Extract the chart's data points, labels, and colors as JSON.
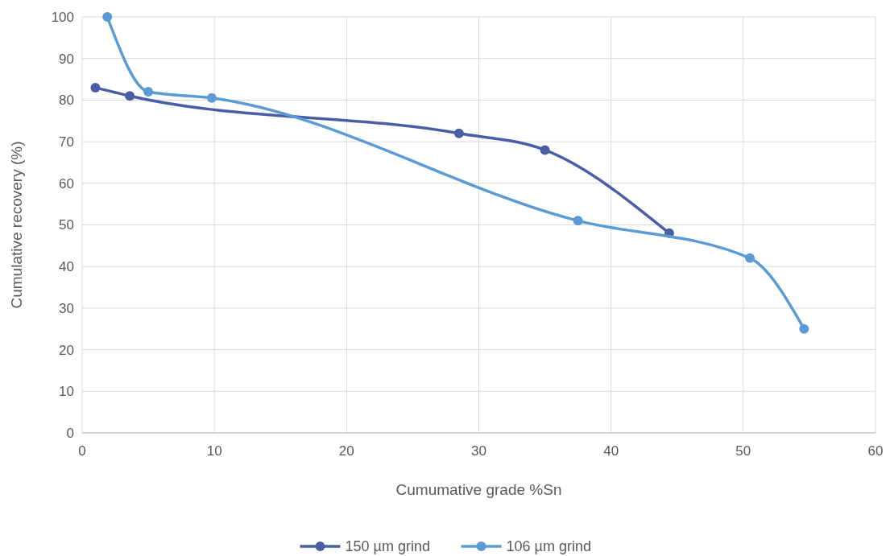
{
  "chart_data": {
    "type": "line",
    "xlabel": "Cumumative grade %Sn",
    "ylabel": "Cumulative recovery (%)",
    "xlim": [
      0,
      60
    ],
    "xticks": [
      0,
      10,
      20,
      30,
      40,
      50,
      60
    ],
    "ylim": [
      0,
      100
    ],
    "yticks": [
      0,
      10,
      20,
      30,
      40,
      50,
      60,
      70,
      80,
      90,
      100
    ],
    "grid": true,
    "legend": "bottom",
    "marker": "circle",
    "line_style": "solid",
    "series": [
      {
        "name": "150 µm grind",
        "color": "#4a5ea8",
        "x": [
          1,
          3.6,
          28.5,
          35,
          44.4
        ],
        "values": [
          83,
          81,
          72,
          68,
          48
        ]
      },
      {
        "name": "106 µm grind",
        "color": "#5b9bd5",
        "x": [
          1.9,
          5,
          9.8,
          37.5,
          50.5,
          54.6
        ],
        "values": [
          100,
          82,
          80.5,
          51,
          42,
          25
        ]
      }
    ]
  }
}
